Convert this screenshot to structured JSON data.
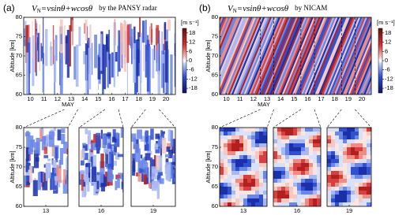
{
  "chart_data": [
    {
      "type": "heatmap",
      "style": "radar",
      "panel_label": "(a)",
      "title_main": "V",
      "title_sub": "N",
      "title_rest": "=vsinθ+wcosθ",
      "source": "by the PANSY radar",
      "ylabel": "Altitude [km]",
      "xlabel": "MAY",
      "xlim": [
        9.5,
        20.7
      ],
      "xticks": [
        10,
        11,
        12,
        13,
        14,
        15,
        16,
        17,
        18,
        19,
        20
      ],
      "ylim": [
        60,
        80
      ],
      "yticks": [
        60,
        65,
        70,
        75,
        80
      ],
      "colorbar": {
        "label": "[m s⁻¹]",
        "lim": [
          -21,
          21
        ],
        "ticks": [
          18,
          12,
          6,
          0,
          -6,
          -12,
          -18
        ]
      }
    },
    {
      "type": "heatmap",
      "style": "radar",
      "ylabel": "Altitude [km]",
      "xlim": [
        12.5,
        13.5
      ],
      "xticks": [
        13
      ],
      "ylim": [
        60,
        80
      ],
      "yticks": [
        60,
        65,
        70,
        75,
        80
      ]
    },
    {
      "type": "heatmap",
      "style": "radar",
      "xlim": [
        15.5,
        16.5
      ],
      "xticks": [
        16
      ],
      "ylim": [
        60,
        80
      ]
    },
    {
      "type": "heatmap",
      "style": "radar",
      "xlim": [
        18.5,
        19.5
      ],
      "xticks": [
        19
      ],
      "ylim": [
        60,
        80
      ]
    },
    {
      "type": "heatmap",
      "style": "model",
      "panel_label": "(b)",
      "title_main": "V",
      "title_sub": "N",
      "title_rest": "=vsinθ+wcosθ",
      "source": "by NICAM",
      "ylabel": "Altitude [km]",
      "xlabel": "MAY",
      "xlim": [
        9.5,
        20.7
      ],
      "xticks": [
        10,
        11,
        12,
        13,
        14,
        15,
        16,
        17,
        18,
        19,
        20
      ],
      "ylim": [
        60,
        80
      ],
      "yticks": [
        60,
        65,
        70,
        75,
        80
      ],
      "colorbar": {
        "label": "[m s⁻¹]",
        "lim": [
          -21,
          21
        ],
        "ticks": [
          18,
          12,
          6,
          0,
          -6,
          -12,
          -18
        ]
      }
    },
    {
      "type": "heatmap",
      "style": "model",
      "ylabel": "Altitude [km]",
      "xlim": [
        12.5,
        13.5
      ],
      "xticks": [
        13
      ],
      "ylim": [
        60,
        80
      ],
      "yticks": [
        60,
        65,
        70,
        75,
        80
      ]
    },
    {
      "type": "heatmap",
      "style": "model",
      "xlim": [
        15.5,
        16.5
      ],
      "xticks": [
        16
      ],
      "ylim": [
        60,
        80
      ]
    },
    {
      "type": "heatmap",
      "style": "model",
      "xlim": [
        18.5,
        19.5
      ],
      "xticks": [
        19
      ],
      "ylim": [
        60,
        80
      ]
    }
  ]
}
